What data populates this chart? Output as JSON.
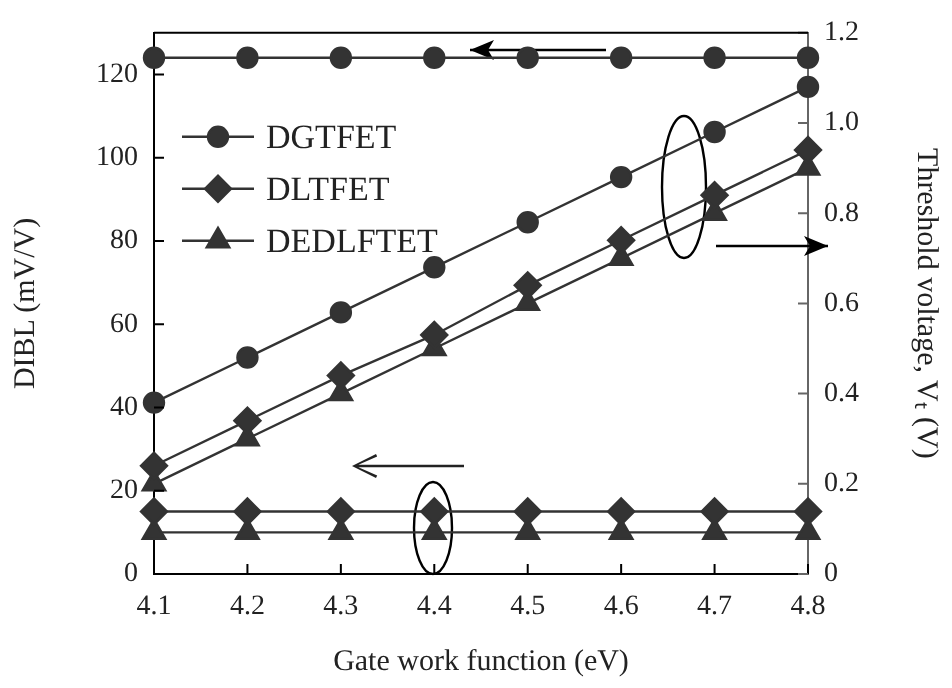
{
  "chart_data": {
    "type": "line",
    "xlabel": "Gate work function (eV)",
    "ylabel": "DIBL (mV/V)",
    "y2label": "Threshold voltage, Vₜ (V)",
    "x": [
      4.1,
      4.2,
      4.3,
      4.4,
      4.5,
      4.6,
      4.7,
      4.8
    ],
    "xlim": [
      4.1,
      4.8
    ],
    "xticks": [
      4.1,
      4.2,
      4.3,
      4.4,
      4.5,
      4.6,
      4.7,
      4.8
    ],
    "ylim": [
      0,
      130
    ],
    "yticks": [
      0,
      20,
      40,
      60,
      80,
      100,
      120
    ],
    "y2lim": [
      0,
      1.2
    ],
    "y2ticks": [
      {
        "value": 0,
        "label": "0"
      },
      0.2,
      0.4,
      0.6,
      0.8,
      {
        "value": 1,
        "label": "1.0"
      },
      1.2
    ],
    "grid": false,
    "legend": "top left",
    "line_style": "solid",
    "series": [
      {
        "name": "DGTFET",
        "color": "#333333",
        "marker": "circle",
        "values": [
          124,
          124,
          124,
          124,
          124,
          124,
          124,
          124
        ]
      },
      {
        "name": "DLTFET",
        "color": "#333333",
        "marker": "diamond",
        "values": [
          15,
          15,
          15,
          15,
          15,
          15,
          15,
          15
        ]
      },
      {
        "name": "DEDLFTET",
        "color": "#333333",
        "marker": "triangle",
        "values": [
          10,
          10,
          10,
          10,
          10,
          10,
          10,
          10
        ]
      },
      {
        "color": "#333333",
        "marker": "circle",
        "axis": "y2",
        "values": [
          0.38,
          0.48,
          0.58,
          0.68,
          0.78,
          0.88,
          0.98,
          1.08
        ]
      },
      {
        "color": "#333333",
        "marker": "diamond",
        "axis": "y2",
        "values": [
          0.24,
          0.34,
          0.44,
          0.53,
          0.64,
          0.74,
          0.84,
          0.94
        ]
      },
      {
        "color": "#333333",
        "marker": "triangle",
        "axis": "y2",
        "values": [
          0.2,
          0.3,
          0.4,
          0.5,
          0.6,
          0.7,
          0.8,
          0.9
        ]
      }
    ]
  }
}
